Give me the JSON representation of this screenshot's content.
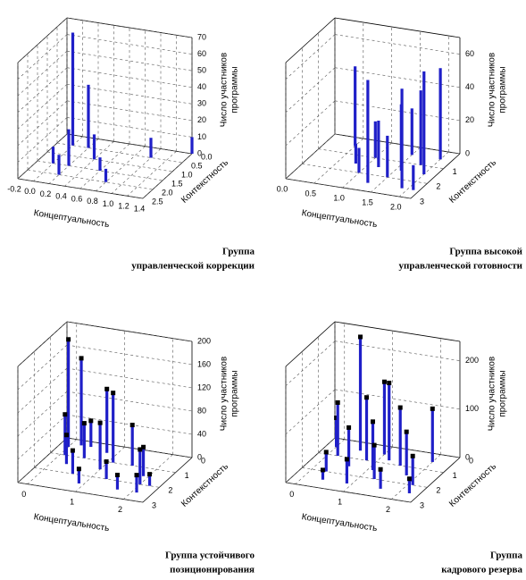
{
  "chart_data": [
    {
      "type": "bar3d",
      "caption": [
        "Группа",
        "управленческой коррекции"
      ],
      "x_label": "Концептуальность",
      "y_label": "Контекстность",
      "z_label": [
        "Число участников",
        "программы"
      ],
      "xlim": [
        -0.2,
        1.4
      ],
      "xticks": [
        -0.2,
        {
          "value": 0,
          "label": "0.0"
        },
        0.2,
        0.4,
        0.6,
        0.8,
        {
          "value": 1,
          "label": "1.0"
        },
        1.2,
        1.4
      ],
      "ylim": [
        0,
        2.5
      ],
      "yticks": [
        {
          "value": 0,
          "label": "0.0"
        },
        0.5,
        {
          "value": 1,
          "label": "1.0"
        },
        1.5,
        {
          "value": 2,
          "label": "2.0"
        },
        2.5
      ],
      "zlim": [
        0,
        70
      ],
      "zticks": [
        0,
        10,
        20,
        30,
        40,
        50,
        60,
        70
      ],
      "color": "#1f1fc8",
      "x": [
        0.0,
        0.0,
        0.2,
        0.2,
        0.2,
        0.4,
        0.6,
        0.8,
        1.0,
        1.4
      ],
      "y": [
        0.5,
        1.5,
        0.5,
        1.5,
        2.0,
        1.0,
        1.5,
        2.0,
        0.5,
        0.0
      ],
      "values": [
        68,
        10,
        38,
        22,
        12,
        15,
        8,
        8,
        12,
        10
      ]
    },
    {
      "type": "bar3d",
      "caption": [
        "Группа высокой",
        "управленческой готовности"
      ],
      "x_label": "Концептуальность",
      "y_label": "Контекстность",
      "z_label": [
        "Число участников",
        "программы"
      ],
      "xlim": [
        0,
        2.2
      ],
      "xticks": [
        {
          "value": 0,
          "label": "0.0"
        },
        0.5,
        {
          "value": 1,
          "label": "1.0"
        },
        1.5,
        {
          "value": 2,
          "label": "2.0"
        }
      ],
      "ylim": [
        0,
        3
      ],
      "yticks": [
        1,
        2,
        3
      ],
      "zlim": [
        0,
        70
      ],
      "zticks": [
        0,
        20,
        40,
        60
      ],
      "color": "#1f1fc8",
      "x": [
        0.5,
        0.8,
        1.0,
        1.0,
        1.2,
        1.3,
        1.5,
        1.5,
        1.6,
        1.8,
        1.9,
        2.0,
        2.0,
        2.1
      ],
      "y": [
        0.5,
        1.5,
        1,
        2,
        1.5,
        2.5,
        0.5,
        2,
        1.5,
        1,
        2.5,
        0.5,
        1.5,
        2.5
      ],
      "values": [
        48,
        12,
        22,
        15,
        28,
        62,
        28,
        25,
        40,
        45,
        60,
        55,
        62,
        15
      ]
    },
    {
      "type": "bar3d",
      "caption": [
        "Группа устойчивого",
        "позиционирования"
      ],
      "x_label": "Концептуальность",
      "y_label": "Контекстность",
      "z_label": [
        "Число участников",
        "программы"
      ],
      "xlim": [
        -0.2,
        2.4
      ],
      "xticks": [
        0,
        1,
        2
      ],
      "ylim": [
        0,
        3
      ],
      "yticks": [
        0,
        1,
        2,
        3
      ],
      "zlim": [
        0,
        200
      ],
      "zticks": [
        0,
        40,
        80,
        120,
        160,
        200
      ],
      "color": "#1f1fc8",
      "cap_color": "#000000",
      "x": [
        0,
        0.1,
        0.2,
        0.3,
        0.5,
        0.6,
        0.8,
        1.0,
        1.1,
        1.3,
        1.5,
        1.7,
        1.9,
        2.0,
        2.1,
        2.2,
        0.4,
        0.9
      ],
      "y": [
        0.5,
        1,
        0.3,
        1.5,
        1,
        2,
        0.5,
        1.5,
        1,
        2,
        1,
        2.5,
        1.5,
        2,
        2.5,
        2,
        0.3,
        2.5
      ],
      "values": [
        185,
        70,
        150,
        50,
        60,
        40,
        110,
        80,
        120,
        30,
        70,
        25,
        50,
        60,
        30,
        20,
        45,
        25
      ]
    },
    {
      "type": "bar3d",
      "caption": [
        "Группа",
        "кадрового резерва"
      ],
      "x_label": "Концептуальность",
      "y_label": "Контекстность",
      "z_label": [
        "Число участников",
        "программы"
      ],
      "xlim": [
        -0.2,
        2.4
      ],
      "xticks": [
        0,
        1,
        2
      ],
      "ylim": [
        0,
        3
      ],
      "yticks": [
        0,
        1,
        2,
        3
      ],
      "zlim": [
        0,
        240
      ],
      "zticks": [
        0,
        100,
        200
      ],
      "color": "#1f1fc8",
      "cap_color": "#000000",
      "x": [
        0,
        0.2,
        0.3,
        0.5,
        0.6,
        0.8,
        0.9,
        1.0,
        1.1,
        1.3,
        1.5,
        1.6,
        1.8,
        2.0,
        2.1,
        2.2,
        0.4,
        1.2
      ],
      "y": [
        0.5,
        1,
        2,
        0.5,
        1.5,
        1,
        2.5,
        0.5,
        1.5,
        2,
        1,
        2.5,
        1.5,
        0.5,
        2,
        2.5,
        2.5,
        0.8
      ],
      "values": [
        60,
        110,
        40,
        235,
        80,
        130,
        50,
        150,
        100,
        70,
        120,
        40,
        90,
        110,
        60,
        30,
        20,
        160
      ]
    }
  ]
}
